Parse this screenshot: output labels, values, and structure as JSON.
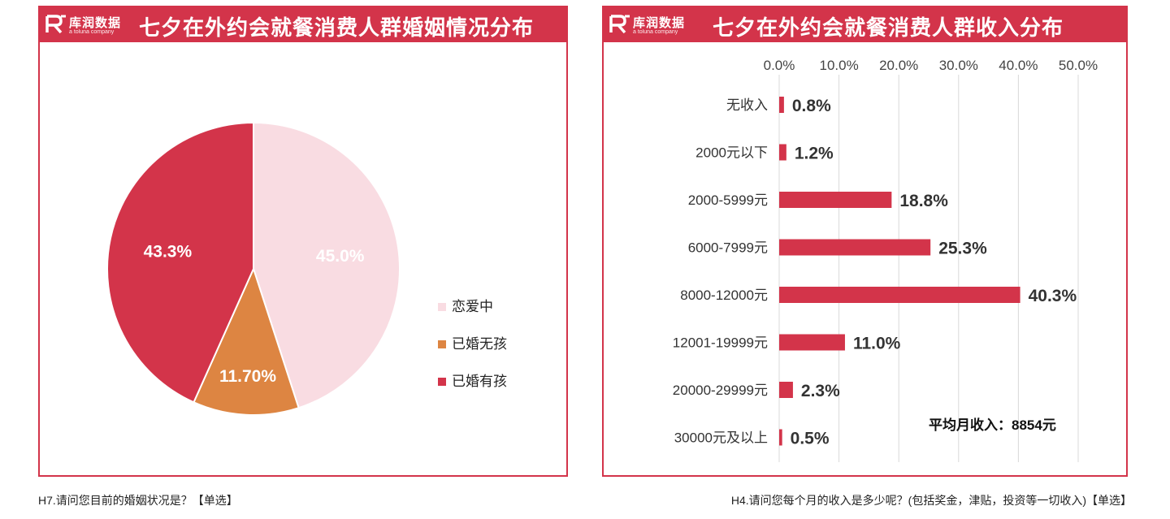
{
  "panels": {
    "left": {
      "title": "七夕在外约会就餐消费人群婚姻情况分布",
      "brand": "库润数据",
      "tagline": "a toluna company",
      "footnote": "H7.请问您目前的婚姻状况是？【单选】"
    },
    "right": {
      "title": "七夕在外约会就餐消费人群收入分布",
      "brand": "库润数据",
      "tagline": "a toluna company",
      "footnote": "H4.请问您每个月的收入是多少呢？(包括奖金，津贴，投资等一切收入)【单选】"
    }
  },
  "colors": {
    "brand_red": "#d3344a",
    "pink": "#f9dce2",
    "orange": "#dd8542",
    "grid": "#d9d9d9"
  },
  "chart_data": [
    {
      "type": "pie",
      "title": "七夕在外约会就餐消费人群婚姻情况分布",
      "slices": [
        {
          "label": "恋爱中",
          "value": 45.0,
          "display": "45.0%",
          "color": "#f9dce2"
        },
        {
          "label": "已婚无孩",
          "value": 11.7,
          "display": "11.70%",
          "color": "#dd8542"
        },
        {
          "label": "已婚有孩",
          "value": 43.3,
          "display": "43.3%",
          "color": "#d3344a"
        }
      ],
      "legend_position": "right"
    },
    {
      "type": "bar",
      "orientation": "horizontal",
      "title": "七夕在外约会就餐消费人群收入分布",
      "categories": [
        "无收入",
        "2000元以下",
        "2000-5999元",
        "6000-7999元",
        "8000-12000元",
        "12001-19999元",
        "20000-29999元",
        "30000元及以上"
      ],
      "values": [
        0.8,
        1.2,
        18.8,
        25.3,
        40.3,
        11.0,
        2.3,
        0.5
      ],
      "value_labels": [
        "0.8%",
        "1.2%",
        "18.8%",
        "25.3%",
        "40.3%",
        "11.0%",
        "2.3%",
        "0.5%"
      ],
      "xlim": [
        0,
        50
      ],
      "xticks": [
        0,
        10,
        20,
        30,
        40,
        50
      ],
      "xtick_labels": [
        "0.0%",
        "10.0%",
        "20.0%",
        "30.0%",
        "40.0%",
        "50.0%"
      ],
      "xaxis_position": "top",
      "grid": true,
      "color": "#d3344a",
      "annotation": "平均月收入：8854元"
    }
  ]
}
